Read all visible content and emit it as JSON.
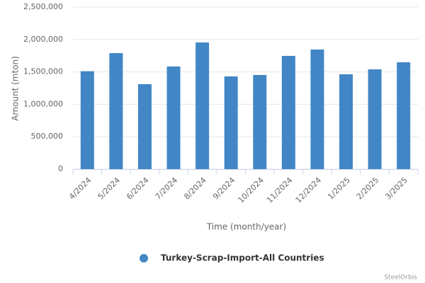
{
  "chart_data": {
    "type": "bar",
    "categories": [
      "4/2024",
      "5/2024",
      "6/2024",
      "7/2024",
      "8/2024",
      "9/2024",
      "10/2024",
      "11/2024",
      "12/2024",
      "1/2025",
      "2/2025",
      "3/2025"
    ],
    "series": [
      {
        "name": "Turkey-Scrap-Import-All Countries",
        "color": "#4286c5",
        "values": [
          1510000,
          1790000,
          1310000,
          1583000,
          1954000,
          1430000,
          1452000,
          1747000,
          1845000,
          1463000,
          1539000,
          1648000
        ]
      }
    ],
    "ylim": [
      0,
      2500000
    ],
    "yticks": [
      0,
      {
        "value": 500000,
        "label": "500,000"
      },
      {
        "value": 1000000,
        "label": "1,000,000"
      },
      {
        "value": 1500000,
        "label": "1,500,000"
      },
      {
        "value": 2000000,
        "label": "2,000,000"
      },
      {
        "value": 2500000,
        "label": "2,500,000"
      }
    ],
    "y_label": "Amount (mton)",
    "x_label": "Time (month/year)",
    "grid": true,
    "credits": "SteelOrbis"
  }
}
